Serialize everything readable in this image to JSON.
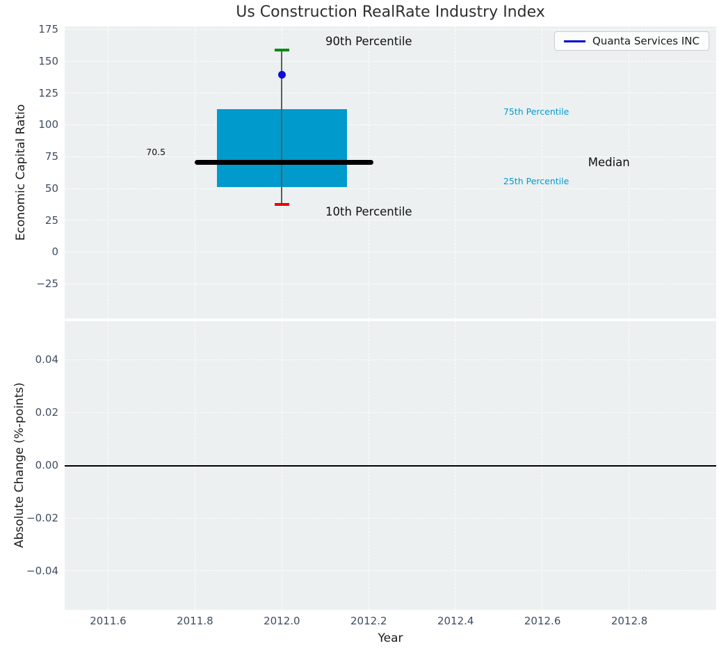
{
  "legend": {
    "label": "Quanta Services INC"
  },
  "colors": {
    "plot_bg": "#ecf0f1",
    "box": "#009acd",
    "whisker": "#5c5c5c",
    "median": "#000000",
    "p90_cap": "#0a8a0a",
    "p10_cap": "#ee0000",
    "company_dot": "#0d0ddd",
    "legend_line": "#0000cc",
    "tick_text": "#3d4c61",
    "percentile_label": "#009acd",
    "annotation_text": "#111111",
    "zero_line": "#000000"
  },
  "chart_data": [
    {
      "type": "boxplot",
      "title": "Us Construction RealRate Industry Index",
      "ylabel": "Economic Capital Ratio",
      "xlim": [
        2011.5,
        2013.0
      ],
      "ylim": [
        -52,
        177.5
      ],
      "grid": true,
      "xticks": {
        "values": [
          2011.6,
          2011.8,
          2012.0,
          2012.2,
          2012.4,
          2012.6,
          2012.8
        ],
        "labels": []
      },
      "yticks": {
        "values": [
          175,
          150,
          125,
          100,
          75,
          50,
          25,
          0,
          -25
        ],
        "labels": [
          "175",
          "150",
          "125",
          "100",
          "75",
          "50",
          "25",
          "0",
          "−25"
        ]
      },
      "box": {
        "x_center": 2012.0,
        "box_left": 2011.85,
        "box_right": 2012.15,
        "q1": 51.5,
        "q3": 112.5,
        "median": 70.5,
        "median_left": 2011.8,
        "median_right": 2012.21,
        "p10": 37.5,
        "p90": 159,
        "cap_halfwidth": 0.017
      },
      "series": [
        {
          "name": "Quanta Services INC",
          "x": 2012.0,
          "value": 139.5
        }
      ],
      "annotations": [
        {
          "text": "90th Percentile",
          "x": 2012.2,
          "y": 165,
          "align": "center",
          "size": "large",
          "color": "#111111"
        },
        {
          "text": "10th Percentile",
          "x": 2012.2,
          "y": 31.5,
          "align": "center",
          "size": "large",
          "color": "#111111"
        },
        {
          "text": "75th Percentile",
          "x": 2012.51,
          "y": 110,
          "align": "left",
          "size": "small",
          "color": "#009acd"
        },
        {
          "text": "25th Percentile",
          "x": 2012.51,
          "y": 55.5,
          "align": "left",
          "size": "small",
          "color": "#009acd"
        },
        {
          "text": "Median",
          "x": 2012.705,
          "y": 70.3,
          "align": "left",
          "size": "large",
          "color": "#111111"
        },
        {
          "text": "70.5",
          "x": 2011.71,
          "y": 78.5,
          "align": "center",
          "size": "small",
          "color": "#111111"
        }
      ],
      "legend_position": "upper right"
    },
    {
      "type": "line",
      "ylabel": "Absolute Change (%-points)",
      "xlabel": "Year",
      "xlim": [
        2011.5,
        2013.0
      ],
      "ylim": [
        -0.0547,
        0.0547
      ],
      "grid": true,
      "xticks": {
        "values": [
          2011.6,
          2011.8,
          2012.0,
          2012.2,
          2012.4,
          2012.6,
          2012.8
        ],
        "labels": [
          "2011.6",
          "2011.8",
          "2012.0",
          "2012.2",
          "2012.4",
          "2012.6",
          "2012.8"
        ]
      },
      "yticks": {
        "values": [
          0.04,
          0.02,
          0.0,
          -0.02,
          -0.04
        ],
        "labels": [
          "0.04",
          "0.02",
          "0.00",
          "−0.02",
          "−0.04"
        ]
      },
      "zero_line": 0.0,
      "series_values": []
    }
  ]
}
